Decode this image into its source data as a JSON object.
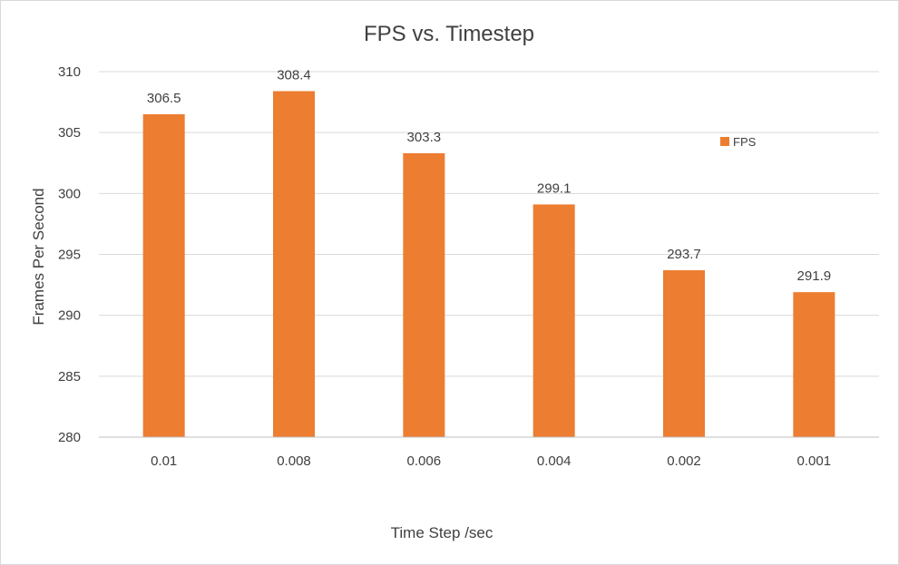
{
  "chart_data": {
    "type": "bar",
    "title": "FPS vs. Timestep",
    "xlabel": "Time Step /sec",
    "ylabel": "Frames Per Second",
    "categories": [
      "0.01",
      "0.008",
      "0.006",
      "0.004",
      "0.002",
      "0.001"
    ],
    "series": [
      {
        "name": "FPS",
        "values": [
          306.5,
          308.4,
          303.3,
          299.1,
          293.7,
          291.9
        ],
        "color": "#ED7D31"
      }
    ],
    "data_labels": [
      "306.5",
      "308.4",
      "303.3",
      "299.1",
      "293.7",
      "291.9"
    ],
    "ylim": [
      280,
      310
    ],
    "yticks": [
      "280",
      "285",
      "290",
      "295",
      "300",
      "305",
      "310"
    ],
    "grid": true,
    "legend_position": "right"
  }
}
